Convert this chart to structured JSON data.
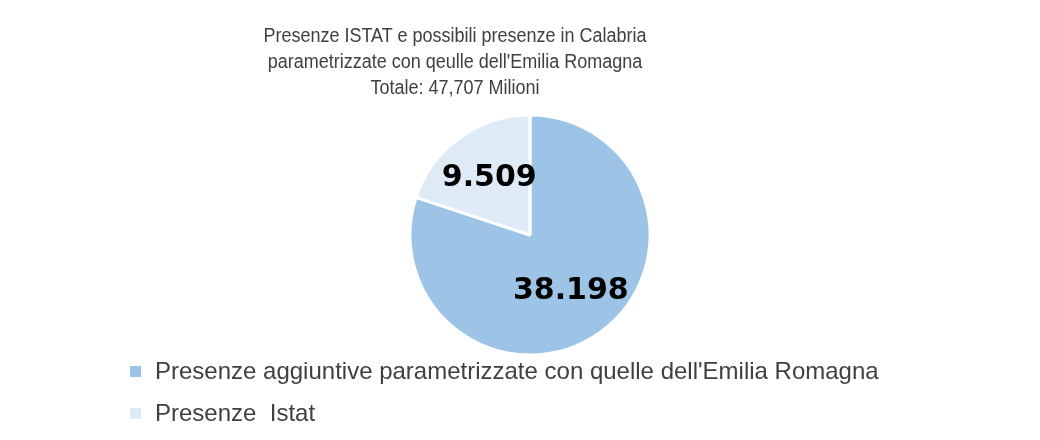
{
  "chart_data": {
    "type": "pie",
    "title": "Presenze ISTAT e possibili presenze in Calabria\nparametrizzate con qeulle dell'Emilia Romagna\nTotale: 47,707 Milioni",
    "categories": [
      "Presenze aggiuntive parametrizzate con quelle dell'Emilia Romagna",
      "Presenze  Istat"
    ],
    "values": [
      38.198,
      9.509
    ],
    "colors": [
      "#9dc3e6",
      "#deebf7"
    ],
    "value_labels": [
      "38.198",
      "9.509"
    ],
    "legend": "bottom"
  }
}
